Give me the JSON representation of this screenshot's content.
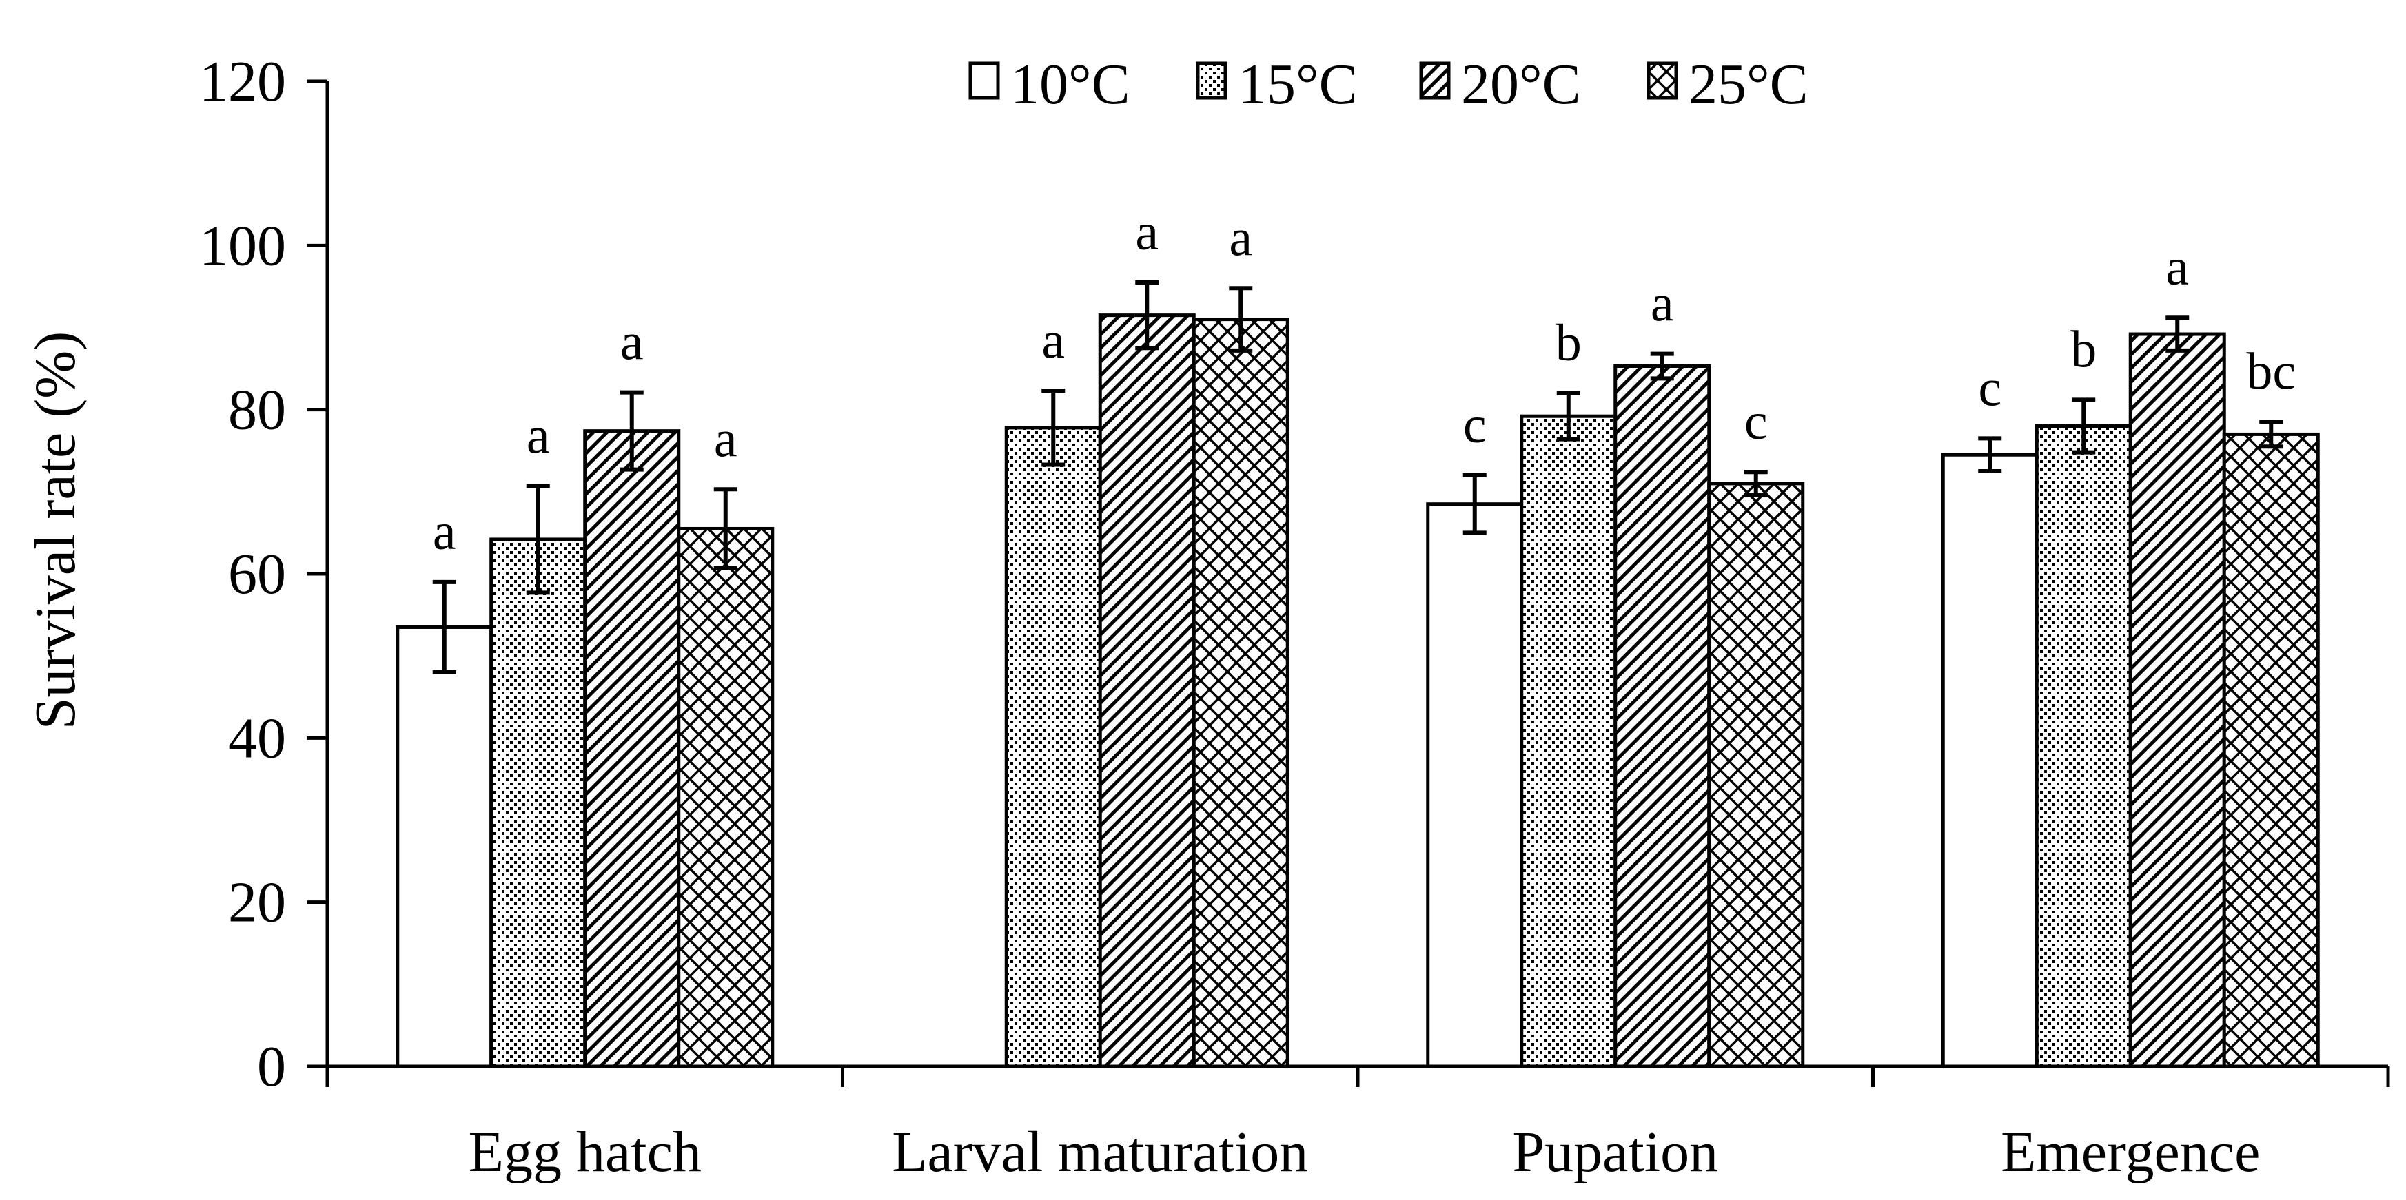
{
  "chart_data": {
    "type": "bar",
    "title": "",
    "xlabel": "",
    "ylabel": "Survival rate (%)",
    "ylim": [
      0,
      120
    ],
    "yticks": [
      0,
      20,
      40,
      60,
      80,
      100,
      120
    ],
    "grid": false,
    "legend_position": "top-center",
    "categories": [
      "Egg hatch",
      "Larval maturation",
      "Pupation",
      "Emergence"
    ],
    "series": [
      {
        "name": "10°C",
        "pattern": "none",
        "values": [
          53.5,
          null,
          68.5,
          74.5
        ],
        "errors": [
          5.5,
          null,
          3.5,
          2.0
        ],
        "letters": [
          "a",
          null,
          "c",
          "c"
        ]
      },
      {
        "name": "15°C",
        "pattern": "dots",
        "values": [
          64.2,
          77.8,
          79.2,
          78.0
        ],
        "errors": [
          6.5,
          4.5,
          2.8,
          3.2
        ],
        "letters": [
          "a",
          "a",
          "b",
          "b"
        ]
      },
      {
        "name": "20°C",
        "pattern": "diagonal",
        "values": [
          77.4,
          91.5,
          85.3,
          89.2
        ],
        "errors": [
          4.7,
          4.0,
          1.5,
          2.0
        ],
        "letters": [
          "a",
          "a",
          "a",
          "a"
        ]
      },
      {
        "name": "25°C",
        "pattern": "crosshatch",
        "values": [
          65.5,
          91.0,
          71.0,
          77.0
        ],
        "errors": [
          4.8,
          3.8,
          1.4,
          1.5
        ],
        "letters": [
          "a",
          "a",
          "c",
          "bc"
        ]
      }
    ]
  }
}
